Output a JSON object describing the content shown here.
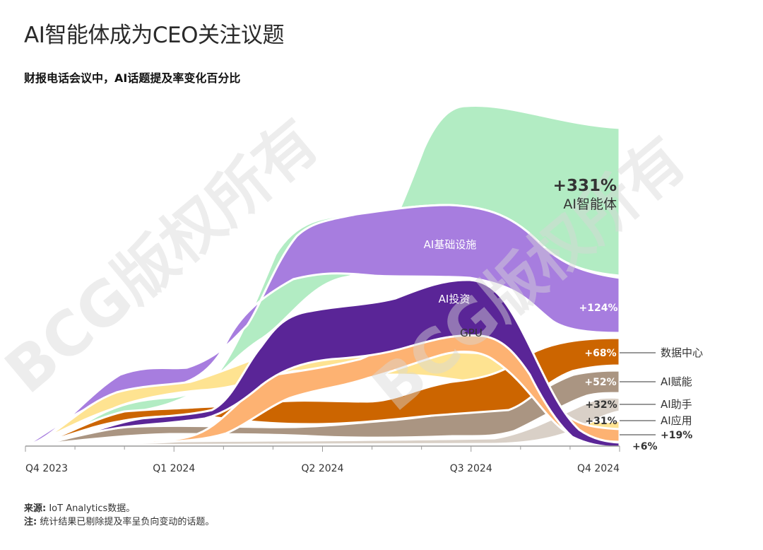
{
  "title": "AI智能体成为CEO关注议题",
  "subtitle": "财报电话会议中，AI话题提及率变化百分比",
  "watermark": "BCG版权所有",
  "footer": {
    "source_label": "来源:",
    "source_text": "IoT Analytics数据。",
    "note_label": "注:",
    "note_text": "统计结果已剔除提及率呈负向变动的话题。"
  },
  "chart_data": {
    "type": "area",
    "stacked": "streamgraph",
    "x": [
      "Q4 2023",
      "Q1 2024",
      "Q2 2024",
      "Q3 2024",
      "Q4 2024"
    ],
    "legend_placement": "right-side labels",
    "grid": false,
    "series": [
      {
        "name": "AI智能体",
        "change": "+331%",
        "color": "#b2ecc3"
      },
      {
        "name": "AI基础设施",
        "change": "+124%",
        "color": "#a77ddf"
      },
      {
        "name": "AI投资",
        "change": "+6%",
        "color": "#5a2597"
      },
      {
        "name": "GPU",
        "change": "+19%",
        "color": "#fdb272"
      },
      {
        "name": "数据中心",
        "change": "+68%",
        "color": "#cc6500"
      },
      {
        "name": "AI赋能",
        "change": "+52%",
        "color": "#aa9582"
      },
      {
        "name": "AI助手",
        "change": "+32%",
        "color": "#d9d0c7"
      },
      {
        "name": "AI应用",
        "change": "+31%",
        "color": "#fee391"
      }
    ]
  },
  "colors": {
    "axis": "#9a9a9a",
    "label_light": "#ffffff",
    "label_dark": "#333333",
    "watermark": "#d6d6d6"
  }
}
